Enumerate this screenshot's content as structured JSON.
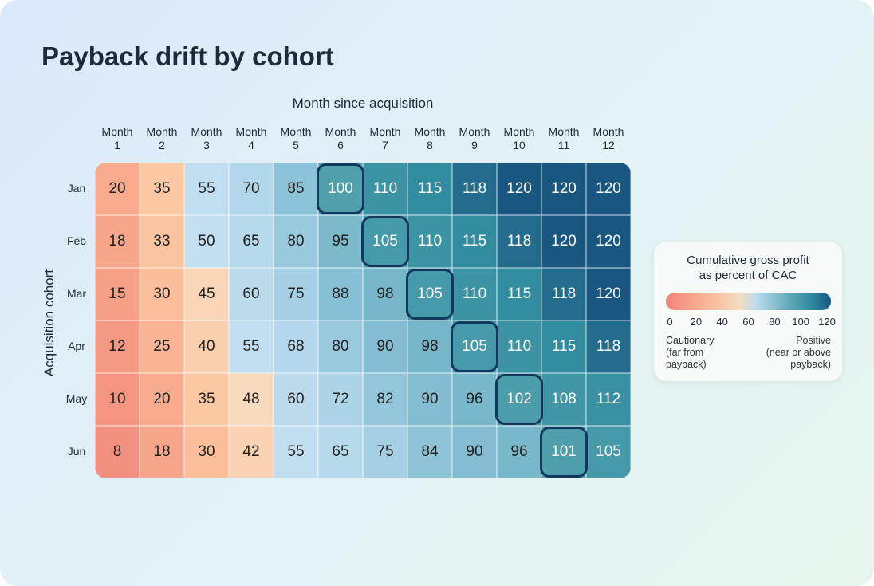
{
  "title": "Payback drift by cohort",
  "chart_data": {
    "type": "heatmap",
    "title": "Payback drift by cohort",
    "xlabel": "Month since acquisition",
    "ylabel": "Acquisition cohort",
    "x_labels": [
      "Month\n1",
      "Month\n2",
      "Month\n3",
      "Month\n4",
      "Month\n5",
      "Month\n6",
      "Month\n7",
      "Month\n8",
      "Month\n9",
      "Month\n10",
      "Month\n11",
      "Month\n12"
    ],
    "y_labels": [
      "Jan",
      "Feb",
      "Mar",
      "Apr",
      "May",
      "Jun"
    ],
    "values": [
      [
        20,
        35,
        55,
        70,
        85,
        100,
        110,
        115,
        118,
        120,
        120,
        120
      ],
      [
        18,
        33,
        50,
        65,
        80,
        95,
        105,
        110,
        115,
        118,
        120,
        120
      ],
      [
        15,
        30,
        45,
        60,
        75,
        88,
        98,
        105,
        110,
        115,
        118,
        120
      ],
      [
        12,
        25,
        40,
        55,
        68,
        80,
        90,
        98,
        105,
        110,
        115,
        118
      ],
      [
        10,
        20,
        35,
        48,
        60,
        72,
        82,
        90,
        96,
        102,
        108,
        112
      ],
      [
        8,
        18,
        30,
        42,
        55,
        65,
        75,
        84,
        90,
        96,
        101,
        105
      ]
    ],
    "highlighted": [
      [
        0,
        5
      ],
      [
        1,
        6
      ],
      [
        2,
        7
      ],
      [
        3,
        8
      ],
      [
        4,
        9
      ],
      [
        5,
        10
      ]
    ],
    "legend": {
      "title": "Cumulative gross profit\nas percent of CAC",
      "ticks": [
        "0",
        "20",
        "40",
        "60",
        "80",
        "100",
        "120"
      ],
      "low_label": "Cautionary\n(far from\npayback)",
      "high_label": "Positive\n(near or above\npayback)",
      "range": [
        0,
        120
      ],
      "placement": "right"
    }
  }
}
